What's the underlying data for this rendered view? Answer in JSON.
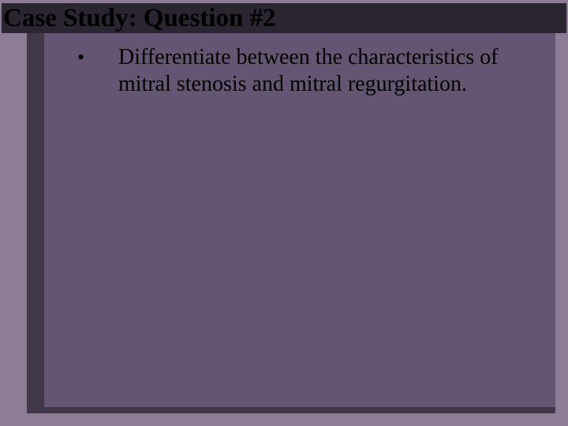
{
  "colors": {
    "slide_bg": "#8d7c96",
    "shadow_block": "#403848",
    "inner_block": "#645672",
    "title_bg": "#2a2530",
    "title_text": "#000000",
    "bullet_text": "#000000"
  },
  "title": "Case Study: Question #2",
  "bullets": [
    "Differentiate between the characteristics of mitral stenosis and mitral regurgitation."
  ],
  "bullet_glyph": "•"
}
